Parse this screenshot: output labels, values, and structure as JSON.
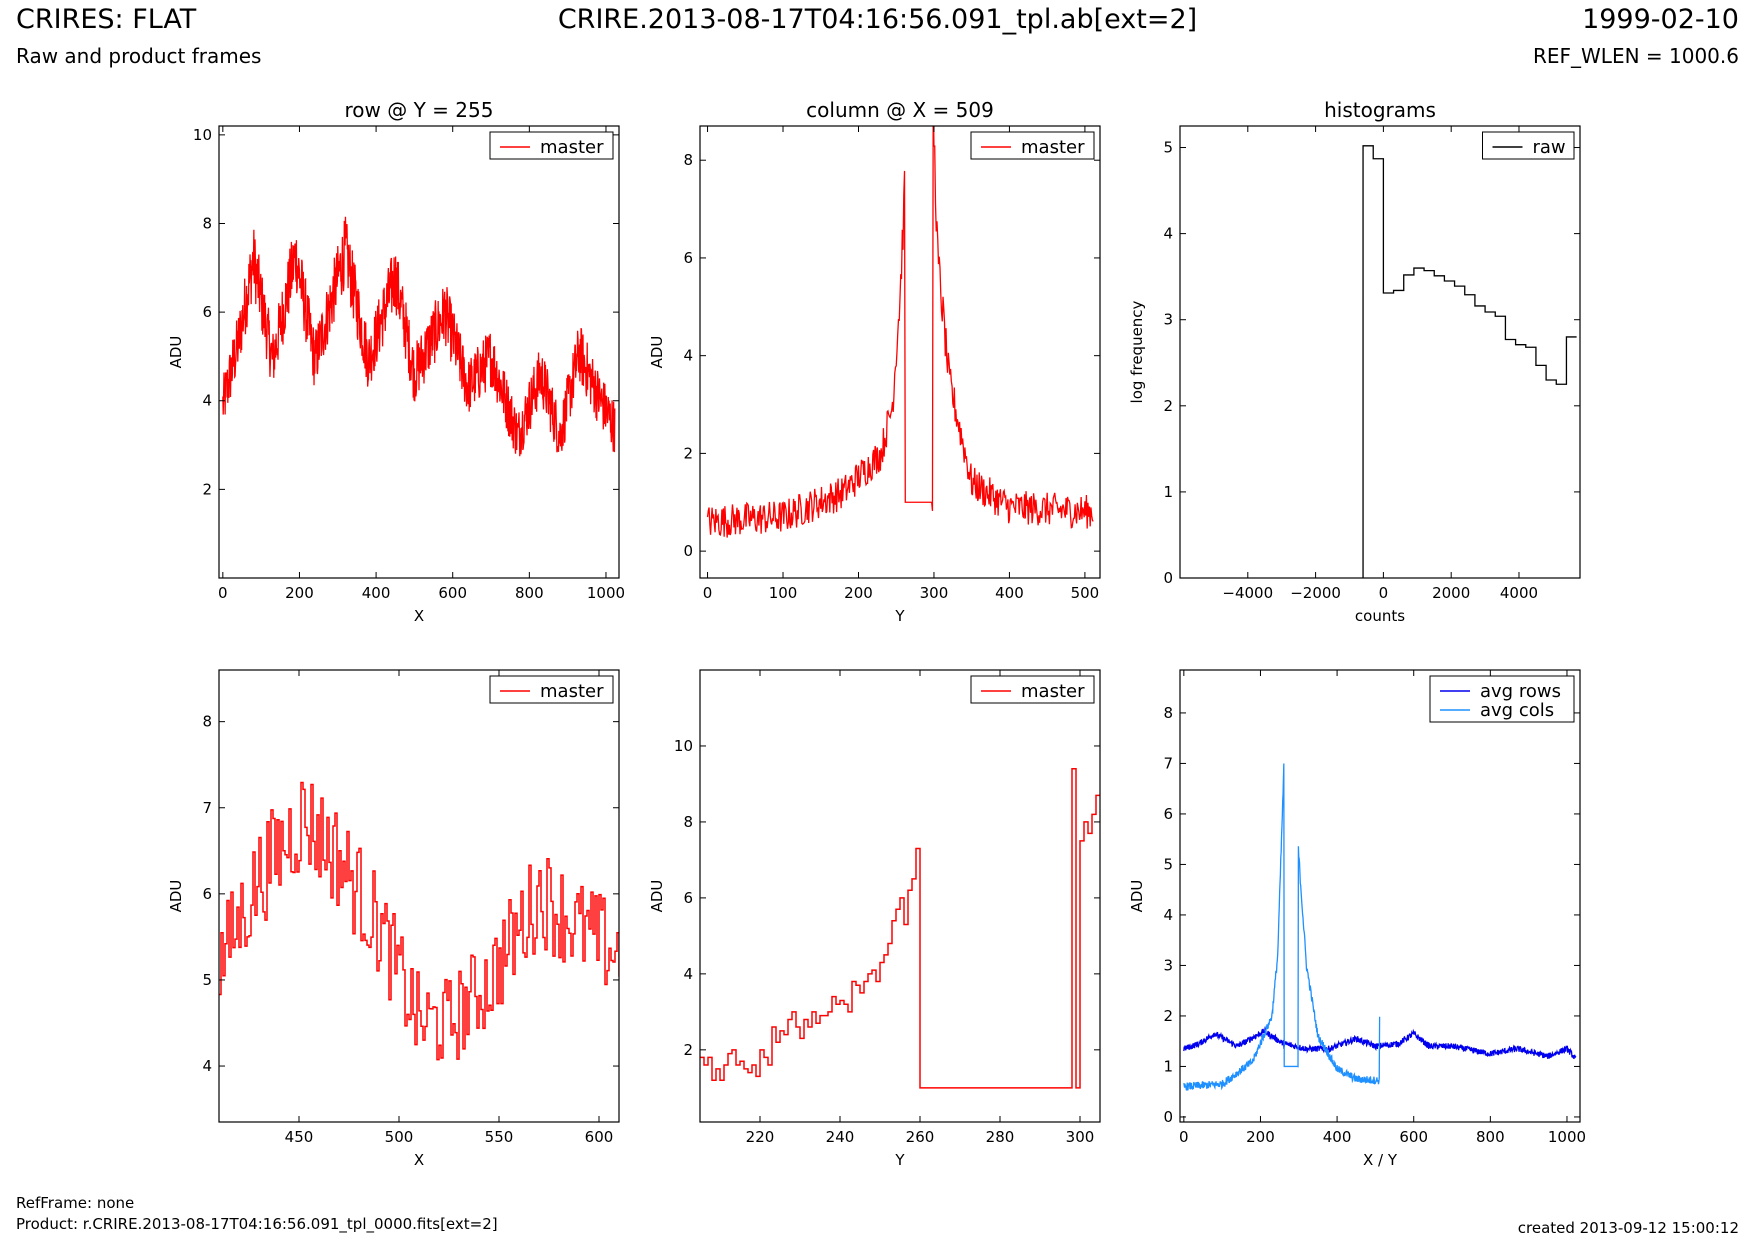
{
  "header": {
    "title": "CRIRES: FLAT",
    "subtitle": "Raw and product frames",
    "file": "CRIRE.2013-08-17T04:16:56.091_tpl.ab[ext=2]",
    "date": "1999-02-10",
    "ref_wlen": "REF_WLEN = 1000.6"
  },
  "footer": {
    "refframe": "RefFrame: none",
    "product": "Product: r.CRIRE.2013-08-17T04:16:56.091_tpl_0000.fits[ext=2]",
    "created": "created 2013-09-12 15:00:12"
  },
  "colors": {
    "master": "#ff0000",
    "raw": "#000000",
    "avg_rows": "#0000ee",
    "avg_cols": "#1e90ff"
  },
  "chart_data": [
    {
      "type": "line",
      "title": "row @ Y = 255",
      "xlabel": "X",
      "ylabel": "ADU",
      "xlim": [
        -10,
        1034
      ],
      "ylim": [
        0,
        10.2
      ],
      "xticks": [
        0,
        200,
        400,
        600,
        800,
        1000
      ],
      "yticks": [
        2,
        4,
        6,
        8,
        10
      ],
      "legend": "top-right",
      "series": [
        {
          "name": "master",
          "color": "#ff0000",
          "x_range": [
            0,
            1023
          ],
          "profile_x": [
            0,
            40,
            80,
            130,
            190,
            240,
            320,
            380,
            450,
            500,
            580,
            640,
            700,
            770,
            830,
            880,
            930,
            980,
            1023
          ],
          "profile_y": [
            3.9,
            5.3,
            7.2,
            4.9,
            7.3,
            4.9,
            7.4,
            4.9,
            6.8,
            4.6,
            6.0,
            4.3,
            5.0,
            3.2,
            4.6,
            3.2,
            5.1,
            4.1,
            3.4
          ],
          "noise": 0.55
        }
      ]
    },
    {
      "type": "line",
      "title": "column @ X = 509",
      "xlabel": "Y",
      "ylabel": "ADU",
      "xlim": [
        -10,
        520
      ],
      "ylim": [
        -0.55,
        8.7
      ],
      "xticks": [
        0,
        100,
        200,
        300,
        400,
        500
      ],
      "yticks": [
        0,
        2,
        4,
        6,
        8
      ],
      "legend": "top-right",
      "series": [
        {
          "name": "master",
          "color": "#ff0000",
          "x_range": [
            0,
            511
          ],
          "profile_x": [
            0,
            100,
            180,
            230,
            245,
            255,
            261,
            262,
            298,
            299,
            305,
            320,
            350,
            400,
            511
          ],
          "profile_y": [
            0.6,
            0.7,
            1.2,
            2.0,
            3.0,
            5.2,
            7.3,
            1.0,
            1.0,
            9.0,
            6.0,
            3.5,
            1.4,
            0.9,
            0.8
          ],
          "noise": 0.35
        }
      ]
    },
    {
      "type": "step",
      "title": "histograms",
      "xlabel": "counts",
      "ylabel": "log frequency",
      "xlim": [
        -6000,
        5800
      ],
      "ylim": [
        0,
        5.25
      ],
      "xticks": [
        -4000,
        -2000,
        0,
        2000,
        4000
      ],
      "xticklabels": [
        "−4000",
        "−2000",
        "0",
        "2000",
        "4000"
      ],
      "yticks": [
        0,
        1,
        2,
        3,
        4,
        5
      ],
      "legend": "top-right",
      "series": [
        {
          "name": "raw",
          "color": "#000000",
          "bin_edges": [
            -600,
            -300,
            0,
            300,
            600,
            900,
            1200,
            1500,
            1800,
            2100,
            2400,
            2700,
            3000,
            3300,
            3600,
            3900,
            4200,
            4500,
            4800,
            5100,
            5400,
            5700
          ],
          "log_counts": [
            5.02,
            4.87,
            3.31,
            3.34,
            3.52,
            3.6,
            3.57,
            3.51,
            3.45,
            3.39,
            3.29,
            3.16,
            3.09,
            3.04,
            2.77,
            2.71,
            2.68,
            2.47,
            2.3,
            2.25,
            2.8
          ]
        }
      ]
    },
    {
      "type": "line",
      "title": "",
      "xlabel": "X",
      "ylabel": "ADU",
      "xlim": [
        410,
        610
      ],
      "ylim": [
        3.35,
        8.6
      ],
      "xticks": [
        450,
        500,
        550,
        600
      ],
      "yticks": [
        4,
        5,
        6,
        7,
        8
      ],
      "legend": "top-right",
      "series": [
        {
          "name": "master",
          "color": "#ff0000",
          "step": true,
          "x_range": [
            410,
            610
          ],
          "profile_x": [
            410,
            430,
            452,
            470,
            490,
            510,
            525,
            545,
            570,
            590,
            610
          ],
          "profile_y": [
            5.2,
            6.2,
            6.9,
            6.4,
            5.6,
            4.5,
            4.5,
            5.0,
            6.0,
            5.6,
            5.3
          ],
          "noise": 0.45
        }
      ]
    },
    {
      "type": "line",
      "title": "",
      "xlabel": "Y",
      "ylabel": "ADU",
      "xlim": [
        205,
        305
      ],
      "ylim": [
        0.1,
        12
      ],
      "xticks": [
        220,
        240,
        260,
        280,
        300
      ],
      "yticks": [
        2,
        4,
        6,
        8,
        10
      ],
      "legend": "top-right",
      "series": [
        {
          "name": "master",
          "color": "#ff0000",
          "step": true,
          "x": [
            205,
            206,
            207,
            208,
            209,
            210,
            211,
            212,
            213,
            214,
            215,
            216,
            217,
            218,
            219,
            220,
            221,
            222,
            223,
            224,
            225,
            226,
            227,
            228,
            229,
            230,
            231,
            232,
            233,
            234,
            235,
            236,
            237,
            238,
            239,
            240,
            241,
            242,
            243,
            244,
            245,
            246,
            247,
            248,
            249,
            250,
            251,
            252,
            253,
            254,
            255,
            256,
            257,
            258,
            259,
            260,
            261,
            262,
            298,
            299,
            300,
            301,
            302,
            303,
            304,
            305
          ],
          "y": [
            1.8,
            1.6,
            1.8,
            1.2,
            1.5,
            1.2,
            1.6,
            1.9,
            2.0,
            1.6,
            1.7,
            1.5,
            1.4,
            1.6,
            1.3,
            2.0,
            1.8,
            1.6,
            2.6,
            2.2,
            2.5,
            2.4,
            2.8,
            3.0,
            2.6,
            2.3,
            2.8,
            2.6,
            3.0,
            2.7,
            2.9,
            2.9,
            3.0,
            3.4,
            3.2,
            3.3,
            3.2,
            3.0,
            3.8,
            3.7,
            3.5,
            3.8,
            4.0,
            4.1,
            3.8,
            4.3,
            4.5,
            4.8,
            5.4,
            5.7,
            6.0,
            5.3,
            6.2,
            6.5,
            7.3,
            1.0,
            1.0,
            1.0,
            9.4,
            1.0,
            7.5,
            8.0,
            7.7,
            8.2,
            8.7,
            8.7
          ]
        }
      ]
    },
    {
      "type": "line",
      "title": "",
      "xlabel": "X / Y",
      "ylabel": "ADU",
      "xlim": [
        -10,
        1034
      ],
      "ylim": [
        -0.1,
        8.85
      ],
      "xticks": [
        0,
        200,
        400,
        600,
        800,
        1000
      ],
      "yticks": [
        0,
        1,
        2,
        3,
        4,
        5,
        6,
        7,
        8
      ],
      "legend": "top-right",
      "series": [
        {
          "name": "avg rows",
          "color": "#0000ee",
          "x_range": [
            0,
            1023
          ],
          "profile_x": [
            0,
            40,
            80,
            140,
            210,
            260,
            320,
            380,
            450,
            500,
            560,
            600,
            640,
            700,
            800,
            870,
            950,
            1000,
            1023
          ],
          "profile_y": [
            1.35,
            1.45,
            1.65,
            1.4,
            1.7,
            1.45,
            1.35,
            1.35,
            1.55,
            1.4,
            1.45,
            1.65,
            1.4,
            1.4,
            1.25,
            1.35,
            1.2,
            1.35,
            1.15
          ],
          "noise": 0.06
        },
        {
          "name": "avg cols",
          "color": "#1e90ff",
          "x_range": [
            0,
            511
          ],
          "profile_x": [
            0,
            100,
            180,
            230,
            245,
            255,
            261,
            262,
            298,
            299,
            305,
            320,
            350,
            400,
            450,
            510,
            511
          ],
          "profile_y": [
            0.6,
            0.65,
            1.1,
            2.0,
            3.2,
            5.5,
            6.9,
            1.0,
            1.0,
            5.3,
            4.6,
            3.0,
            1.6,
            0.95,
            0.75,
            0.72,
            2.0
          ],
          "noise": 0.08
        }
      ]
    }
  ]
}
